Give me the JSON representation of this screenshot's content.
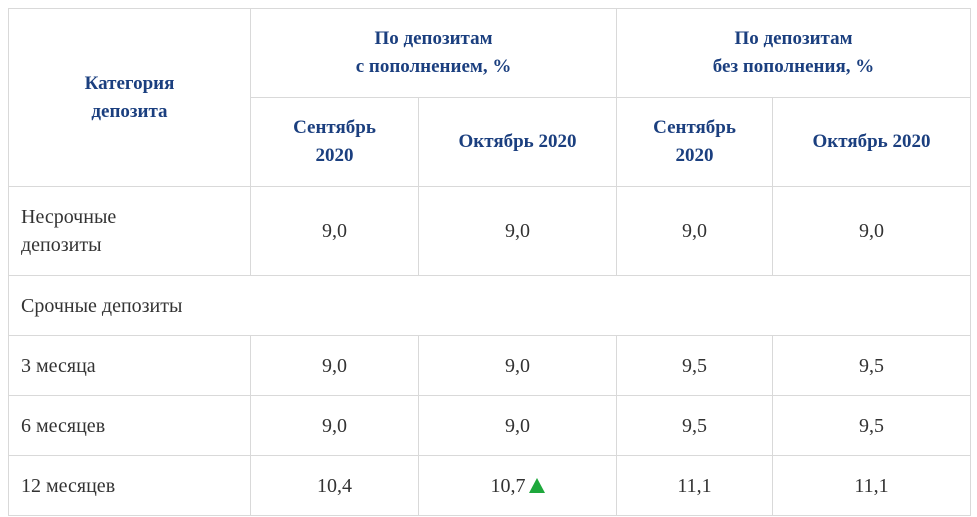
{
  "table": {
    "header": {
      "category": "Категория\nдепозита",
      "groups": [
        "По депозитам\nс пополнением, %",
        "По депозитам\nбез пополнения, %"
      ],
      "months": [
        "Сентябрь\n2020",
        "Октябрь 2020",
        "Сентябрь\n2020",
        "Октябрь 2020"
      ]
    },
    "rows": [
      [
        "Несрочные\nдепозиты",
        "9,0",
        "9,0",
        "9,0",
        "9,0"
      ],
      [
        "Срочные депозиты"
      ],
      [
        "3 месяца",
        "9,0",
        "9,0",
        "9,5",
        "9,5"
      ],
      [
        "6 месяцев",
        "9,0",
        "9,0",
        "9,5",
        "9,5"
      ],
      [
        "12 месяцев",
        "10,4",
        "10,7",
        "11,1",
        "11,1"
      ]
    ]
  }
}
